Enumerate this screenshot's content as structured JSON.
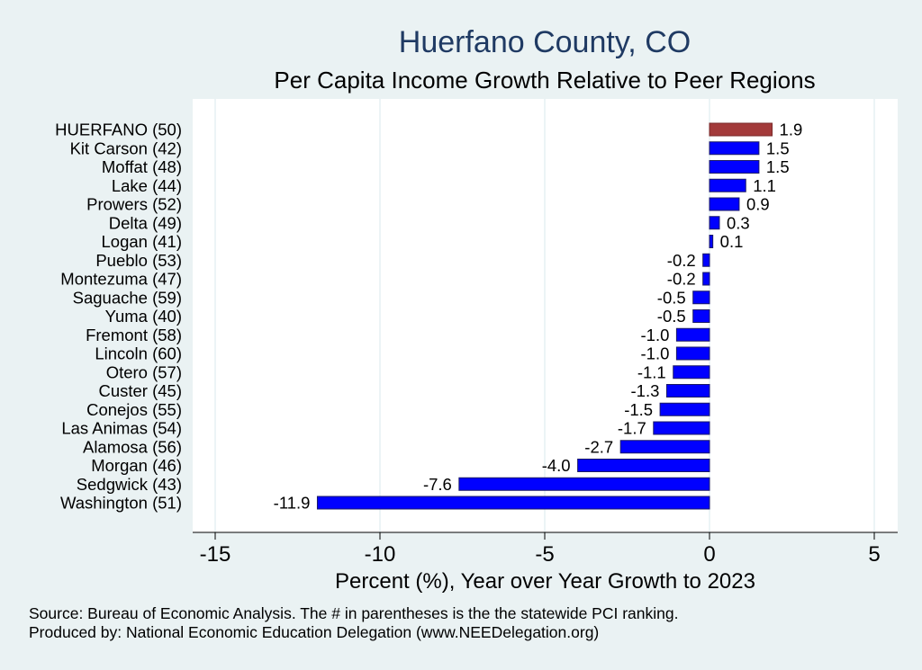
{
  "chart_data": {
    "type": "bar",
    "orientation": "horizontal",
    "title": "Huerfano County, CO",
    "subtitle": "Per Capita Income Growth Relative to Peer Regions",
    "xlabel": "Percent (%), Year over Year Growth to 2023",
    "xlim": [
      -16,
      6
    ],
    "xticks": [
      -15,
      -10,
      -5,
      0,
      5
    ],
    "categories": [
      "HUERFANO (50)",
      "Kit Carson (42)",
      "Moffat (48)",
      "Lake (44)",
      "Prowers (52)",
      "Delta (49)",
      "Logan (41)",
      "Pueblo (53)",
      "Montezuma (47)",
      "Saguache (59)",
      "Yuma (40)",
      "Fremont (58)",
      "Lincoln (60)",
      "Otero (57)",
      "Custer (45)",
      "Conejos (55)",
      "Las Animas (54)",
      "Alamosa (56)",
      "Morgan (46)",
      "Sedgwick (43)",
      "Washington (51)"
    ],
    "values": [
      1.9,
      1.5,
      1.5,
      1.1,
      0.9,
      0.3,
      0.1,
      -0.2,
      -0.2,
      -0.5,
      -0.5,
      -1.0,
      -1.0,
      -1.1,
      -1.3,
      -1.5,
      -1.7,
      -2.7,
      -4.0,
      -7.6,
      -11.9
    ],
    "value_labels": [
      "1.9",
      "1.5",
      "1.5",
      "1.1",
      "0.9",
      "0.3",
      "0.1",
      "-0.2",
      "-0.2",
      "-0.5",
      "-0.5",
      "-1.0",
      "-1.0",
      "-1.1",
      "-1.3",
      "-1.5",
      "-1.7",
      "-2.7",
      "-4.0",
      "-7.6",
      "-11.9"
    ],
    "highlight_index": 0,
    "colors": {
      "highlight": "#a33a3a",
      "bar": "#0000ff",
      "bar_edge": "#1a1a66",
      "grid": "#dfecef",
      "plot_bg": "#ffffff",
      "page_bg": "#eaf2f3",
      "title": "#1f3a63"
    },
    "grid": true
  },
  "footer": {
    "source": "Source: Bureau of Economic Analysis. The # in parentheses is the the statewide PCI ranking.",
    "produced_by": "Produced by: National Economic Education Delegation (www.NEEDelegation.org)"
  }
}
